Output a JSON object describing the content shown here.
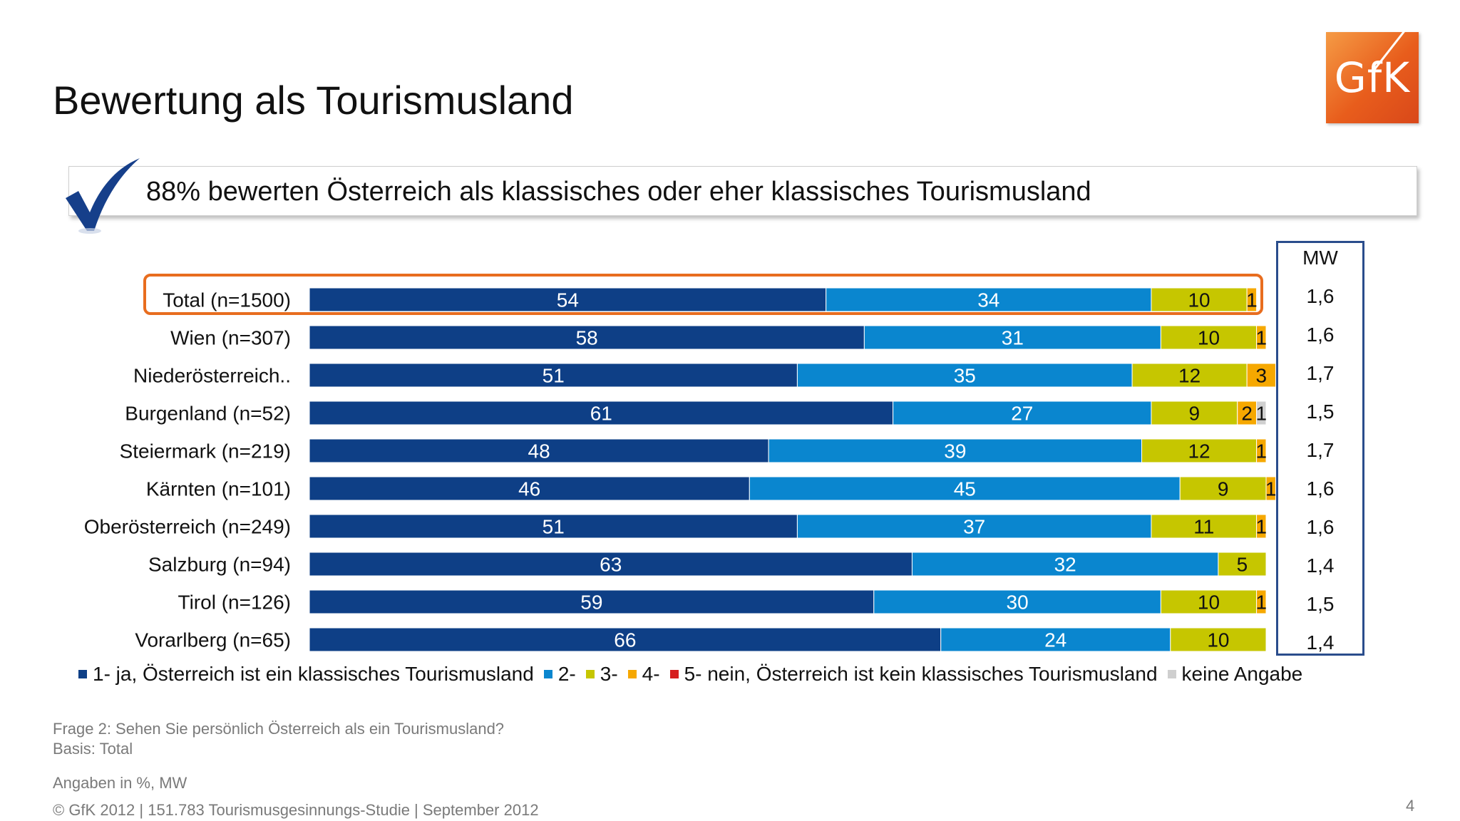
{
  "title": "Bewertung als Tourismusland",
  "logo": {
    "text": "GfK"
  },
  "callout": {
    "text": "88% bewerten Österreich als klassisches oder eher klassisches Tourismusland",
    "icon": "checkmark-icon"
  },
  "colors": {
    "c1": "#0e3f86",
    "c2": "#0a86cf",
    "c3": "#c6c600",
    "c4": "#f6a800",
    "c5": "#d61f1f",
    "c6": "#cfcfcf",
    "highlight": "#e86d1f",
    "mw_border": "#2a4d8c"
  },
  "mw": {
    "header": "MW",
    "values": [
      "1,6",
      "1,6",
      "1,7",
      "1,5",
      "1,7",
      "1,6",
      "1,6",
      "1,4",
      "1,5",
      "1,4"
    ]
  },
  "chart_data": {
    "type": "bar",
    "orientation": "horizontal",
    "stacked": true,
    "xlim": [
      0,
      100
    ],
    "categories": [
      "Total (n=1500)",
      "Wien (n=307)",
      "Niederösterreich..",
      "Burgenland (n=52)",
      "Steiermark (n=219)",
      "Kärnten (n=101)",
      "Oberösterreich (n=249)",
      "Salzburg (n=94)",
      "Tirol (n=126)",
      "Vorarlberg (n=65)"
    ],
    "series": [
      {
        "name": "1- ja, Österreich ist ein klassisches Tourismusland",
        "values": [
          54,
          58,
          51,
          61,
          48,
          46,
          51,
          63,
          59,
          66
        ]
      },
      {
        "name": "2-",
        "values": [
          34,
          31,
          35,
          27,
          39,
          45,
          37,
          32,
          30,
          24
        ]
      },
      {
        "name": "3-",
        "values": [
          10,
          10,
          12,
          9,
          12,
          9,
          11,
          5,
          10,
          10
        ]
      },
      {
        "name": "4-",
        "values": [
          1,
          1,
          3,
          2,
          1,
          1,
          1,
          0,
          1,
          0
        ]
      },
      {
        "name": "5- nein, Österreich ist kein klassisches Tourismusland",
        "values": [
          0,
          0,
          0,
          0,
          0,
          0,
          0,
          0,
          0,
          0
        ]
      },
      {
        "name": "keine Angabe",
        "values": [
          0,
          0,
          0,
          1,
          0,
          0,
          0,
          0,
          0,
          0
        ]
      }
    ],
    "highlighted_category": "Total (n=1500)"
  },
  "footer": {
    "question": "Frage 2: Sehen Sie persönlich Österreich als ein Tourismusland?",
    "basis": "Basis: Total",
    "units": "Angaben in %, MW",
    "copyright": "© GfK 2012 | 151.783 Tourismusgesinnungs-Studie | September 2012",
    "page": "4"
  }
}
